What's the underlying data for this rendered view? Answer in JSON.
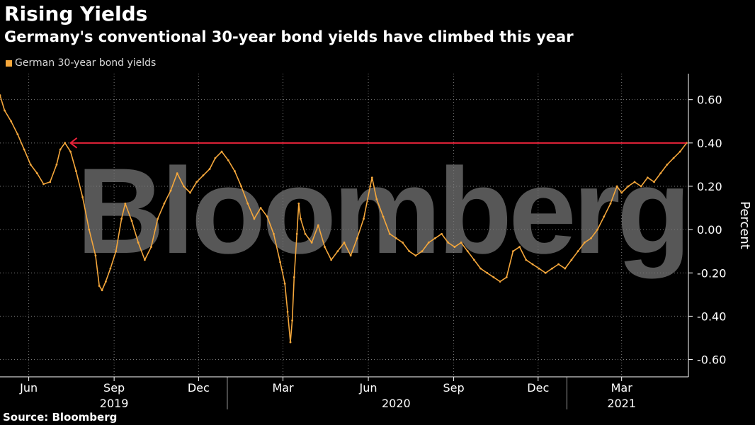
{
  "title": "Rising Yields",
  "subtitle": "Germany's conventional 30-year bond yields have climbed this year",
  "source": "Source: Bloomberg",
  "watermark": "Bloomberg",
  "legend": {
    "label": "German 30-year bond yields",
    "color": "#f5a73b"
  },
  "colors": {
    "background": "#000000",
    "series": "#f5a73b",
    "reference_line": "#e8233a",
    "grid": "#7a7a7a",
    "axis_text": "#ffffff"
  },
  "chart_data": {
    "type": "line",
    "title": "Rising Yields",
    "subtitle": "Germany's conventional 30-year bond yields have climbed this year",
    "ylabel": "Percent",
    "xlabel": "",
    "grid": true,
    "legend_position": "top-left",
    "ylim": [
      -0.68,
      0.72
    ],
    "xlim": [
      "2019-05-01",
      "2021-05-12"
    ],
    "y_ticks": [
      0.6,
      0.4,
      0.2,
      0.0,
      -0.2,
      -0.4,
      -0.6
    ],
    "y_tick_labels": [
      "0.60",
      "0.40",
      "0.20",
      "0.00",
      "-0.20",
      "-0.40",
      "-0.60"
    ],
    "x_month_ticks": [
      {
        "date": "2019-06-01",
        "label": "Jun"
      },
      {
        "date": "2019-09-01",
        "label": "Sep"
      },
      {
        "date": "2019-12-01",
        "label": "Dec"
      },
      {
        "date": "2020-03-01",
        "label": "Mar"
      },
      {
        "date": "2020-06-01",
        "label": "Jun"
      },
      {
        "date": "2020-09-01",
        "label": "Sep"
      },
      {
        "date": "2020-12-01",
        "label": "Dec"
      },
      {
        "date": "2021-03-01",
        "label": "Mar"
      }
    ],
    "x_year_labels": [
      {
        "date": "2019-09-01",
        "label": "2019"
      },
      {
        "date": "2020-07-01",
        "label": "2020"
      },
      {
        "date": "2021-03-01",
        "label": "2021"
      }
    ],
    "year_dividers": [
      "2020-01-01",
      "2021-01-01"
    ],
    "reference_line": {
      "value": 0.4,
      "from": "2019-07-16",
      "to": "2021-05-10",
      "arrow": "left"
    },
    "series": [
      {
        "name": "German 30-year bond yields",
        "points": [
          [
            "2019-05-01",
            0.62
          ],
          [
            "2019-05-06",
            0.55
          ],
          [
            "2019-05-13",
            0.5
          ],
          [
            "2019-05-20",
            0.44
          ],
          [
            "2019-05-27",
            0.37
          ],
          [
            "2019-06-03",
            0.3
          ],
          [
            "2019-06-10",
            0.26
          ],
          [
            "2019-06-17",
            0.21
          ],
          [
            "2019-06-24",
            0.22
          ],
          [
            "2019-07-01",
            0.3
          ],
          [
            "2019-07-05",
            0.37
          ],
          [
            "2019-07-10",
            0.4
          ],
          [
            "2019-07-16",
            0.36
          ],
          [
            "2019-07-22",
            0.27
          ],
          [
            "2019-07-29",
            0.15
          ],
          [
            "2019-08-05",
            0.0
          ],
          [
            "2019-08-12",
            -0.12
          ],
          [
            "2019-08-16",
            -0.26
          ],
          [
            "2019-08-19",
            -0.28
          ],
          [
            "2019-08-23",
            -0.24
          ],
          [
            "2019-08-28",
            -0.18
          ],
          [
            "2019-09-03",
            -0.1
          ],
          [
            "2019-09-09",
            0.05
          ],
          [
            "2019-09-13",
            0.12
          ],
          [
            "2019-09-20",
            0.04
          ],
          [
            "2019-09-27",
            -0.06
          ],
          [
            "2019-10-04",
            -0.14
          ],
          [
            "2019-10-11",
            -0.08
          ],
          [
            "2019-10-18",
            0.05
          ],
          [
            "2019-10-25",
            0.12
          ],
          [
            "2019-11-01",
            0.18
          ],
          [
            "2019-11-08",
            0.26
          ],
          [
            "2019-11-15",
            0.2
          ],
          [
            "2019-11-22",
            0.17
          ],
          [
            "2019-11-29",
            0.22
          ],
          [
            "2019-12-06",
            0.25
          ],
          [
            "2019-12-13",
            0.28
          ],
          [
            "2019-12-19",
            0.33
          ],
          [
            "2019-12-26",
            0.36
          ],
          [
            "2020-01-02",
            0.32
          ],
          [
            "2020-01-09",
            0.27
          ],
          [
            "2020-01-16",
            0.2
          ],
          [
            "2020-01-23",
            0.12
          ],
          [
            "2020-01-30",
            0.05
          ],
          [
            "2020-02-06",
            0.1
          ],
          [
            "2020-02-13",
            0.06
          ],
          [
            "2020-02-20",
            -0.02
          ],
          [
            "2020-02-27",
            -0.15
          ],
          [
            "2020-03-03",
            -0.25
          ],
          [
            "2020-03-06",
            -0.38
          ],
          [
            "2020-03-09",
            -0.52
          ],
          [
            "2020-03-11",
            -0.42
          ],
          [
            "2020-03-13",
            -0.22
          ],
          [
            "2020-03-16",
            -0.02
          ],
          [
            "2020-03-18",
            0.12
          ],
          [
            "2020-03-20",
            0.05
          ],
          [
            "2020-03-25",
            -0.02
          ],
          [
            "2020-04-01",
            -0.06
          ],
          [
            "2020-04-08",
            0.02
          ],
          [
            "2020-04-15",
            -0.08
          ],
          [
            "2020-04-22",
            -0.14
          ],
          [
            "2020-04-29",
            -0.1
          ],
          [
            "2020-05-06",
            -0.06
          ],
          [
            "2020-05-13",
            -0.12
          ],
          [
            "2020-05-20",
            -0.04
          ],
          [
            "2020-05-27",
            0.05
          ],
          [
            "2020-06-03",
            0.2
          ],
          [
            "2020-06-05",
            0.24
          ],
          [
            "2020-06-10",
            0.14
          ],
          [
            "2020-06-17",
            0.06
          ],
          [
            "2020-06-24",
            -0.02
          ],
          [
            "2020-07-01",
            -0.04
          ],
          [
            "2020-07-08",
            -0.06
          ],
          [
            "2020-07-15",
            -0.1
          ],
          [
            "2020-07-22",
            -0.12
          ],
          [
            "2020-07-29",
            -0.1
          ],
          [
            "2020-08-05",
            -0.06
          ],
          [
            "2020-08-12",
            -0.04
          ],
          [
            "2020-08-19",
            -0.02
          ],
          [
            "2020-08-26",
            -0.06
          ],
          [
            "2020-09-02",
            -0.08
          ],
          [
            "2020-09-09",
            -0.06
          ],
          [
            "2020-09-16",
            -0.1
          ],
          [
            "2020-09-23",
            -0.14
          ],
          [
            "2020-09-30",
            -0.18
          ],
          [
            "2020-10-07",
            -0.2
          ],
          [
            "2020-10-14",
            -0.22
          ],
          [
            "2020-10-21",
            -0.24
          ],
          [
            "2020-10-28",
            -0.22
          ],
          [
            "2020-11-04",
            -0.1
          ],
          [
            "2020-11-11",
            -0.08
          ],
          [
            "2020-11-18",
            -0.14
          ],
          [
            "2020-11-25",
            -0.16
          ],
          [
            "2020-12-02",
            -0.18
          ],
          [
            "2020-12-09",
            -0.2
          ],
          [
            "2020-12-16",
            -0.18
          ],
          [
            "2020-12-23",
            -0.16
          ],
          [
            "2020-12-30",
            -0.18
          ],
          [
            "2021-01-06",
            -0.14
          ],
          [
            "2021-01-13",
            -0.1
          ],
          [
            "2021-01-20",
            -0.06
          ],
          [
            "2021-01-27",
            -0.04
          ],
          [
            "2021-02-03",
            0.0
          ],
          [
            "2021-02-10",
            0.06
          ],
          [
            "2021-02-17",
            0.12
          ],
          [
            "2021-02-24",
            0.2
          ],
          [
            "2021-03-01",
            0.17
          ],
          [
            "2021-03-08",
            0.2
          ],
          [
            "2021-03-15",
            0.22
          ],
          [
            "2021-03-22",
            0.2
          ],
          [
            "2021-03-29",
            0.24
          ],
          [
            "2021-04-05",
            0.22
          ],
          [
            "2021-04-12",
            0.26
          ],
          [
            "2021-04-19",
            0.3
          ],
          [
            "2021-04-26",
            0.33
          ],
          [
            "2021-05-03",
            0.36
          ],
          [
            "2021-05-10",
            0.4
          ]
        ]
      }
    ]
  }
}
